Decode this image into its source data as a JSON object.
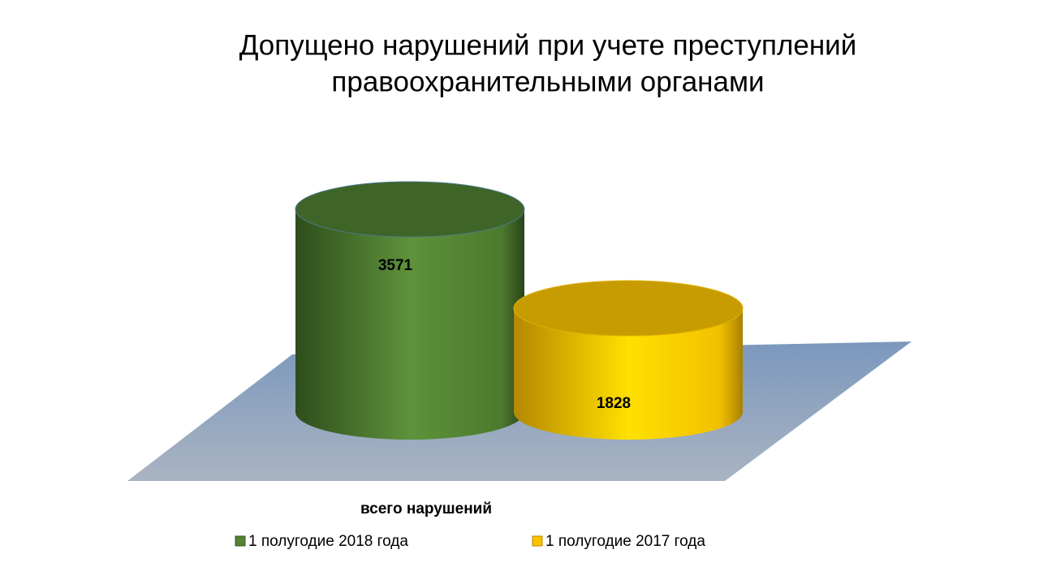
{
  "chart_data": {
    "type": "bar",
    "title": [
      "Допущено нарушений при учете преступлений",
      "правоохранительными органами"
    ],
    "categories": [
      "всего нарушений"
    ],
    "series": [
      {
        "name": "1 полугодие 2018 года",
        "color": "#548235",
        "values": [
          3571
        ]
      },
      {
        "name": "1 полугодие 2017 года",
        "color": "#ffc000",
        "values": [
          1828
        ]
      }
    ]
  }
}
